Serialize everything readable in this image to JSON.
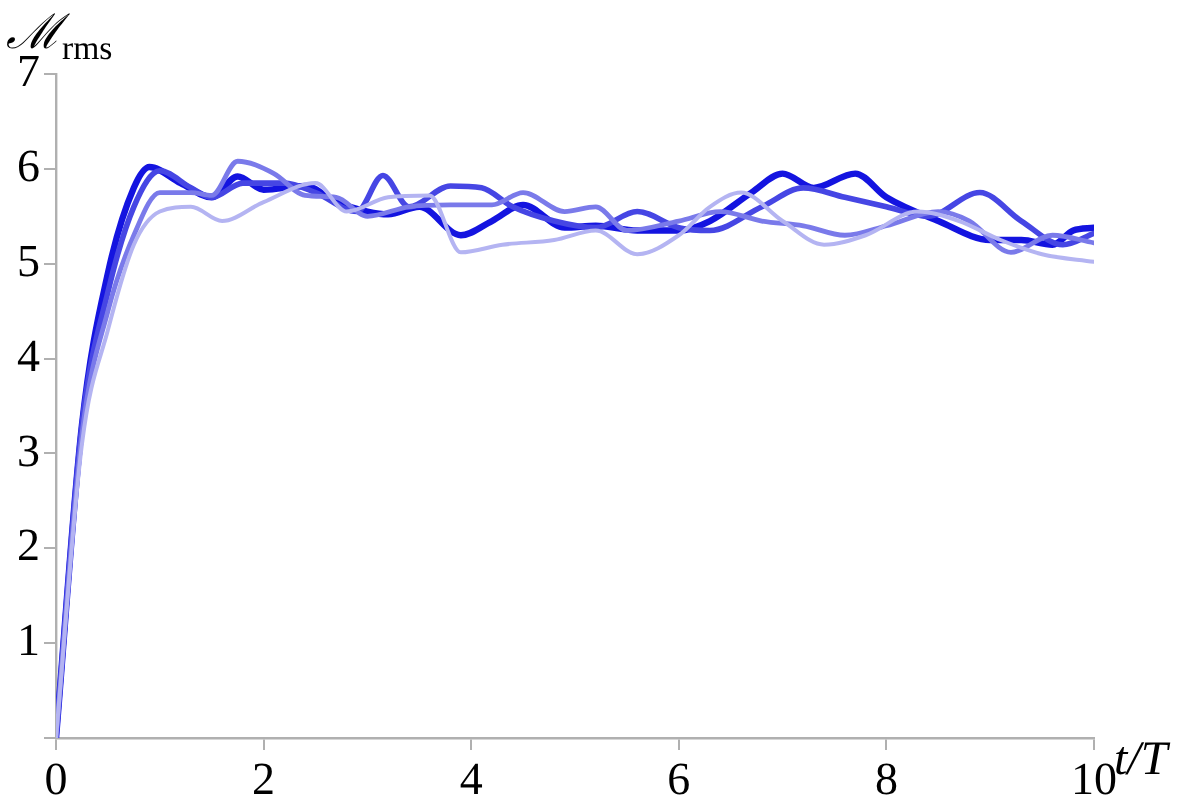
{
  "chart_data": {
    "type": "line",
    "xlabel": "t/T",
    "ylabel": "ℳ$_{rms}$",
    "xlim": [
      0,
      10
    ],
    "ylim": [
      0,
      7
    ],
    "xticks": [
      0,
      2,
      4,
      6,
      8,
      10
    ],
    "yticks": [
      {
        "value": 0,
        "label": null
      },
      1,
      2,
      3,
      4,
      5,
      6,
      7
    ],
    "grid": false,
    "legend": false,
    "marker": "none",
    "line_style": "solid",
    "series": [
      {
        "color": "#b4b4f2",
        "x": [
          0,
          0.25,
          0.5,
          0.75,
          1,
          1.3,
          1.6,
          2,
          2.5,
          2.8,
          3.2,
          3.6,
          3.9,
          4.3,
          4.8,
          5.2,
          5.6,
          6,
          6.3,
          6.6,
          7,
          7.4,
          7.8,
          8.3,
          8.7,
          9.1,
          9.5,
          10
        ],
        "values": [
          0,
          3.1,
          4.3,
          5.2,
          5.55,
          5.6,
          5.45,
          5.65,
          5.85,
          5.55,
          5.7,
          5.72,
          5.12,
          5.2,
          5.25,
          5.35,
          5.1,
          5.3,
          5.6,
          5.75,
          5.45,
          5.2,
          5.3,
          5.55,
          5.45,
          5.25,
          5.1,
          5.02
        ]
      },
      {
        "color": "#7a7aea",
        "x": [
          0,
          0.25,
          0.5,
          0.75,
          1,
          1.3,
          1.5,
          1.75,
          2.1,
          2.4,
          2.7,
          3,
          3.4,
          3.8,
          4.2,
          4.5,
          4.9,
          5.2,
          5.5,
          6,
          6.4,
          6.8,
          7.2,
          7.6,
          8,
          8.5,
          8.8,
          9.2,
          9.6,
          10
        ],
        "values": [
          0,
          3.2,
          4.5,
          5.3,
          5.75,
          5.75,
          5.72,
          6.08,
          5.95,
          5.72,
          5.7,
          5.5,
          5.6,
          5.62,
          5.62,
          5.75,
          5.55,
          5.6,
          5.35,
          5.45,
          5.55,
          5.45,
          5.4,
          5.3,
          5.4,
          5.55,
          5.45,
          5.12,
          5.3,
          5.22
        ]
      },
      {
        "color": "#4646e4",
        "x": [
          0,
          0.25,
          0.5,
          0.75,
          1,
          1.3,
          1.5,
          1.8,
          2.2,
          2.5,
          2.9,
          3.15,
          3.4,
          3.8,
          4.1,
          4.4,
          4.8,
          5.2,
          5.6,
          6,
          6.3,
          6.8,
          7.2,
          7.6,
          8,
          8.4,
          8.9,
          9.3,
          9.7,
          10
        ],
        "values": [
          0,
          3.3,
          4.7,
          5.6,
          5.98,
          5.8,
          5.7,
          5.85,
          5.85,
          5.75,
          5.55,
          5.93,
          5.6,
          5.82,
          5.8,
          5.6,
          5.45,
          5.38,
          5.55,
          5.38,
          5.35,
          5.6,
          5.8,
          5.7,
          5.6,
          5.5,
          5.75,
          5.45,
          5.2,
          5.32
        ]
      },
      {
        "color": "#1414e0",
        "x": [
          0,
          0.25,
          0.5,
          0.75,
          0.9,
          1.2,
          1.5,
          1.75,
          2,
          2.4,
          2.7,
          3,
          3.2,
          3.5,
          3.9,
          4.2,
          4.5,
          4.9,
          5.2,
          5.6,
          6,
          6.3,
          6.7,
          7,
          7.3,
          7.7,
          8,
          8.5,
          9,
          9.3,
          9.6,
          9.8,
          10
        ],
        "values": [
          0,
          3.3,
          4.9,
          5.8,
          6.02,
          5.85,
          5.7,
          5.92,
          5.78,
          5.82,
          5.65,
          5.55,
          5.52,
          5.6,
          5.3,
          5.45,
          5.62,
          5.38,
          5.4,
          5.35,
          5.35,
          5.45,
          5.75,
          5.95,
          5.8,
          5.95,
          5.7,
          5.45,
          5.25,
          5.25,
          5.2,
          5.35,
          5.38
        ]
      }
    ]
  }
}
